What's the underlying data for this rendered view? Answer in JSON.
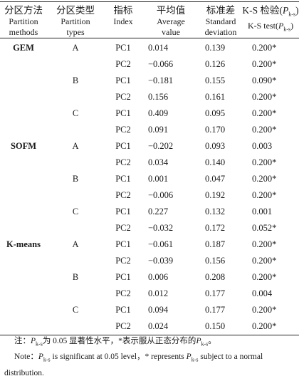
{
  "table": {
    "headers": {
      "method_zh": "分区方法",
      "method_en1": "Partition",
      "method_en2": "methods",
      "type_zh": "分区类型",
      "type_en1": "Partition",
      "type_en2": "types",
      "index_zh": "指标",
      "index_en": "Index",
      "avg_zh": "平均值",
      "avg_en1": "Average",
      "avg_en2": "value",
      "std_zh": "标准差",
      "std_en1": "Standard",
      "std_en2": "deviation",
      "ks_zh": "K-S 检验(",
      "ks_en": "K-S test(",
      "p_symbol": "P",
      "p_sub": "k-s",
      "close_paren": ")"
    },
    "rows": [
      {
        "method": "GEM",
        "type": "A",
        "index": "PC1",
        "mean": "0.014",
        "sd": "0.139",
        "ks": "0.200*"
      },
      {
        "method": "",
        "type": "",
        "index": "PC2",
        "mean": "−0.066",
        "sd": "0.126",
        "ks": "0.200*"
      },
      {
        "method": "",
        "type": "B",
        "index": "PC1",
        "mean": "−0.181",
        "sd": "0.155",
        "ks": "0.090*"
      },
      {
        "method": "",
        "type": "",
        "index": "PC2",
        "mean": "0.156",
        "sd": "0.161",
        "ks": "0.200*"
      },
      {
        "method": "",
        "type": "C",
        "index": "PC1",
        "mean": "0.409",
        "sd": "0.095",
        "ks": "0.200*"
      },
      {
        "method": "",
        "type": "",
        "index": "PC2",
        "mean": "0.091",
        "sd": "0.170",
        "ks": "0.200*"
      },
      {
        "method": "SOFM",
        "type": "A",
        "index": "PC1",
        "mean": "−0.202",
        "sd": "0.093",
        "ks": "0.003"
      },
      {
        "method": "",
        "type": "",
        "index": "PC2",
        "mean": "0.034",
        "sd": "0.140",
        "ks": "0.200*"
      },
      {
        "method": "",
        "type": "B",
        "index": "PC1",
        "mean": "0.001",
        "sd": "0.047",
        "ks": "0.200*"
      },
      {
        "method": "",
        "type": "",
        "index": "PC2",
        "mean": "−0.006",
        "sd": "0.192",
        "ks": "0.200*"
      },
      {
        "method": "",
        "type": "C",
        "index": "PC1",
        "mean": "0.227",
        "sd": "0.132",
        "ks": "0.001"
      },
      {
        "method": "",
        "type": "",
        "index": "PC2",
        "mean": "−0.032",
        "sd": "0.172",
        "ks": "0.052*"
      },
      {
        "method": "K-means",
        "type": "A",
        "index": "PC1",
        "mean": "−0.061",
        "sd": "0.187",
        "ks": "0.200*"
      },
      {
        "method": "",
        "type": "",
        "index": "PC2",
        "mean": "−0.039",
        "sd": "0.156",
        "ks": "0.200*"
      },
      {
        "method": "",
        "type": "B",
        "index": "PC1",
        "mean": "0.006",
        "sd": "0.208",
        "ks": "0.200*"
      },
      {
        "method": "",
        "type": "",
        "index": "PC2",
        "mean": "0.012",
        "sd": "0.177",
        "ks": "0.004"
      },
      {
        "method": "",
        "type": "C",
        "index": "PC1",
        "mean": "0.094",
        "sd": "0.177",
        "ks": "0.200*"
      },
      {
        "method": "",
        "type": "",
        "index": "PC2",
        "mean": "0.024",
        "sd": "0.150",
        "ks": "0.200*"
      }
    ]
  },
  "note": {
    "zh_prefix": "注：",
    "zh_mid": "为 0.05 显著性水平，*表示服从正态分布的",
    "zh_end": "。",
    "en_prefix": "Note：",
    "en_mid": " is significant at 0.05 level，* represents ",
    "en_end": " subject to a normal distribution."
  }
}
